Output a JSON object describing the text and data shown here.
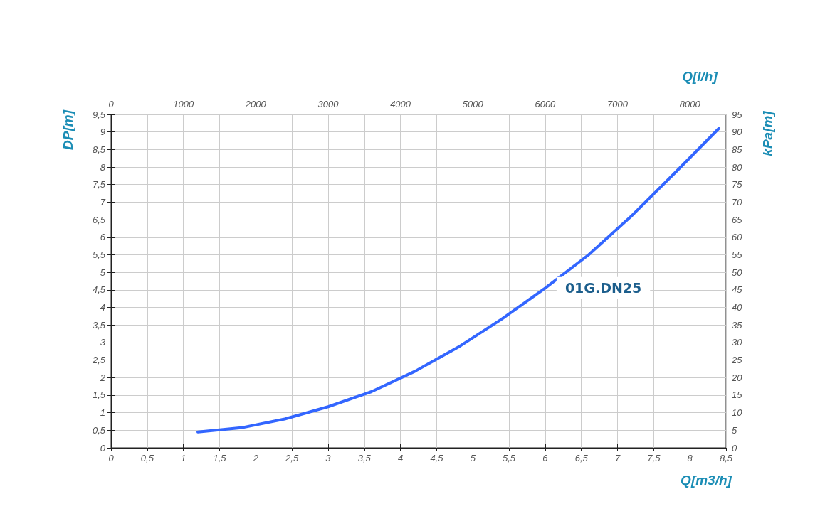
{
  "chart_data": {
    "type": "line",
    "xlabel": "Q[m3/h]",
    "ylabel": "DP[m]",
    "y2label": "kPa[m]",
    "x2label": "Q[l/h]",
    "x": [
      1.2,
      1.8,
      2.4,
      3.0,
      3.6,
      4.2,
      4.8,
      5.4,
      6.0,
      6.6,
      7.2,
      7.8,
      8.4
    ],
    "series": [
      {
        "name": "01G.DN25",
        "color": "#3366ff",
        "values": [
          0.45,
          0.57,
          0.82,
          1.17,
          1.6,
          2.18,
          2.87,
          3.67,
          4.55,
          5.5,
          6.62,
          7.85,
          9.1
        ]
      }
    ],
    "xlim": [
      0,
      8.5
    ],
    "xticks": [
      0,
      {
        "value": 0.5,
        "label": "0,5"
      },
      1,
      {
        "value": 1.5,
        "label": "1,5"
      },
      2,
      {
        "value": 2.5,
        "label": "2,5"
      },
      3,
      {
        "value": 3.5,
        "label": "3,5"
      },
      4,
      {
        "value": 4.5,
        "label": "4,5"
      },
      5,
      {
        "value": 5.5,
        "label": "5,5"
      },
      6,
      {
        "value": 6.5,
        "label": "6,5"
      },
      7,
      {
        "value": 7.5,
        "label": "7,5"
      },
      8,
      {
        "value": 8.5,
        "label": "8,5"
      }
    ],
    "ylim": [
      0,
      9.5
    ],
    "yticks": [
      0,
      {
        "value": 0.5,
        "label": "0,5"
      },
      1,
      {
        "value": 1.5,
        "label": "1,5"
      },
      2,
      {
        "value": 2.5,
        "label": "2,5"
      },
      3,
      {
        "value": 3.5,
        "label": "3,5"
      },
      4,
      {
        "value": 4.5,
        "label": "4,5"
      },
      5,
      {
        "value": 5.5,
        "label": "5,5"
      },
      6,
      {
        "value": 6.5,
        "label": "6,5"
      },
      7,
      {
        "value": 7.5,
        "label": "7,5"
      },
      8,
      {
        "value": 8.5,
        "label": "8,5"
      },
      9,
      {
        "value": 9.5,
        "label": "9,5"
      }
    ],
    "y2lim": [
      0,
      95
    ],
    "y2ticks": [
      0,
      5,
      10,
      15,
      20,
      25,
      30,
      35,
      40,
      45,
      50,
      55,
      60,
      65,
      70,
      75,
      80,
      85,
      90,
      95
    ],
    "x2lim": [
      0,
      8500
    ],
    "x2ticks": [
      0,
      1000,
      2000,
      3000,
      4000,
      5000,
      6000,
      7000,
      8000
    ],
    "grid": true,
    "legend": false,
    "marker": "none",
    "line_style": "solid"
  }
}
